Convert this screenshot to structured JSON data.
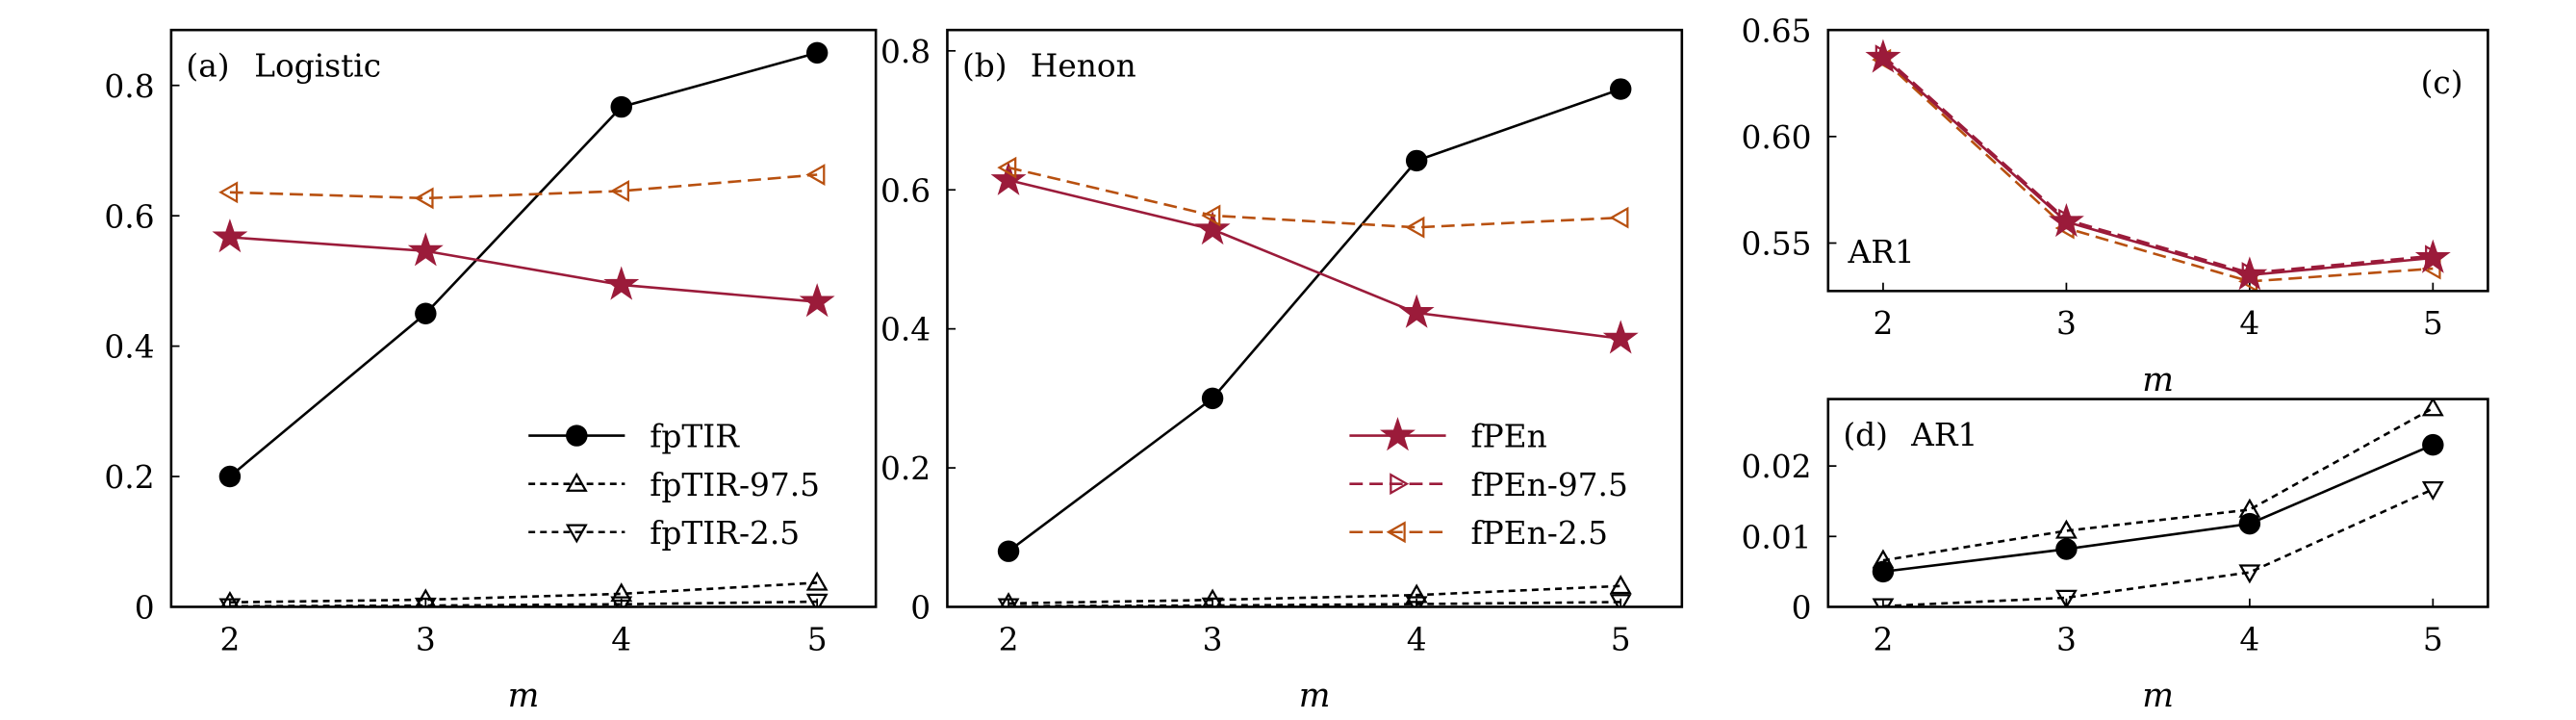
{
  "colors": {
    "fpTIR": "#000000",
    "fPEn": "#9b1b3a",
    "fPEn_band": "#b8500f"
  },
  "chart_data": [
    {
      "type": "line",
      "panel_label": "(a)",
      "title": "Logistic",
      "xlabel": "m",
      "ylabel": "",
      "x": [
        2,
        3,
        4,
        5
      ],
      "xticks": [
        "2",
        "3",
        "4",
        "5"
      ],
      "yticks": [
        "0",
        "0.2",
        "0.4",
        "0.6",
        "0.8"
      ],
      "yticks_values": [
        0,
        0.2,
        0.4,
        0.6,
        0.8
      ],
      "ylim": [
        0,
        0.885
      ],
      "xlim": [
        1.7,
        5.3
      ],
      "legend": "bottom-right",
      "legend_entries": [
        "fpTIR",
        "fpTIR-97.5",
        "fpTIR-2.5"
      ],
      "series": [
        {
          "name": "fpTIR",
          "values": [
            0.2,
            0.45,
            0.767,
            0.85
          ],
          "marker": "circle",
          "style": "solid",
          "color": "#000000"
        },
        {
          "name": "fpTIR-97.5",
          "values": [
            0.007,
            0.011,
            0.02,
            0.037
          ],
          "marker": "triangle-up",
          "style": "dotted",
          "color": "#000000"
        },
        {
          "name": "fpTIR-2.5",
          "values": [
            0.001,
            0.002,
            0.004,
            0.008
          ],
          "marker": "triangle-down",
          "style": "dotted",
          "color": "#000000"
        },
        {
          "name": "fPEn",
          "values": [
            0.567,
            0.546,
            0.494,
            0.468
          ],
          "marker": "star",
          "style": "solid",
          "color": "#9b1b3a"
        },
        {
          "name": "fPEn-2.5",
          "values": [
            0.636,
            0.627,
            0.638,
            0.663
          ],
          "marker": "triangle-left",
          "style": "dashed",
          "color": "#b8500f"
        }
      ]
    },
    {
      "type": "line",
      "panel_label": "(b)",
      "title": "Henon",
      "xlabel": "m",
      "ylabel": "",
      "x": [
        2,
        3,
        4,
        5
      ],
      "xticks": [
        "2",
        "3",
        "4",
        "5"
      ],
      "yticks": [
        "0",
        "0.2",
        "0.4",
        "0.6",
        "0.8"
      ],
      "yticks_values": [
        0,
        0.2,
        0.4,
        0.6,
        0.8
      ],
      "ylim": [
        0,
        0.83
      ],
      "xlim": [
        1.7,
        5.3
      ],
      "legend": "bottom-right",
      "legend_entries": [
        "fPEn",
        "fPEn-97.5",
        "fPEn-2.5"
      ],
      "series": [
        {
          "name": "fpTIR",
          "values": [
            0.08,
            0.3,
            0.642,
            0.745
          ],
          "marker": "circle",
          "style": "solid",
          "color": "#000000"
        },
        {
          "name": "fpTIR-97.5",
          "values": [
            0.005,
            0.01,
            0.017,
            0.03
          ],
          "marker": "triangle-up",
          "style": "dotted",
          "color": "#000000"
        },
        {
          "name": "fpTIR-2.5",
          "values": [
            0.001,
            0.002,
            0.004,
            0.007
          ],
          "marker": "triangle-down",
          "style": "dotted",
          "color": "#000000"
        },
        {
          "name": "fPEn",
          "values": [
            0.614,
            0.543,
            0.423,
            0.386
          ],
          "marker": "star",
          "style": "solid",
          "color": "#9b1b3a"
        },
        {
          "name": "fPEn-2.5",
          "values": [
            0.632,
            0.563,
            0.546,
            0.56
          ],
          "marker": "triangle-left",
          "style": "dashed",
          "color": "#b8500f"
        }
      ]
    },
    {
      "type": "line",
      "panel_label": "(c)",
      "title": "AR1",
      "xlabel": "m",
      "ylabel": "",
      "x": [
        2,
        3,
        4,
        5
      ],
      "xticks": [
        "2",
        "3",
        "4",
        "5"
      ],
      "yticks": [
        "0.55",
        "0.60",
        "0.65"
      ],
      "yticks_values": [
        0.55,
        0.6,
        0.65
      ],
      "ylim": [
        0.5275,
        0.65
      ],
      "xlim": [
        1.7,
        5.3
      ],
      "series": [
        {
          "name": "fPEn-97.5",
          "values": [
            0.638,
            0.561,
            0.536,
            0.544
          ],
          "marker": "triangle-right",
          "style": "dashed",
          "color": "#9b1b3a"
        },
        {
          "name": "fPEn-2.5",
          "values": [
            0.636,
            0.557,
            0.532,
            0.538
          ],
          "marker": "triangle-left",
          "style": "dashed",
          "color": "#b8500f"
        },
        {
          "name": "fPEn",
          "values": [
            0.637,
            0.56,
            0.535,
            0.543
          ],
          "marker": "star",
          "style": "solid",
          "color": "#9b1b3a"
        }
      ]
    },
    {
      "type": "line",
      "panel_label": "(d)",
      "title": "AR1",
      "xlabel": "m",
      "ylabel": "",
      "x": [
        2,
        3,
        4,
        5
      ],
      "xticks": [
        "2",
        "3",
        "4",
        "5"
      ],
      "yticks": [
        "0",
        "0.01",
        "0.02"
      ],
      "yticks_values": [
        0,
        0.01,
        0.02
      ],
      "ylim": [
        0,
        0.0295
      ],
      "xlim": [
        1.7,
        5.3
      ],
      "series": [
        {
          "name": "fpTIR",
          "values": [
            0.005,
            0.0082,
            0.0118,
            0.023
          ],
          "marker": "circle",
          "style": "solid",
          "color": "#000000"
        },
        {
          "name": "fpTIR-97.5",
          "values": [
            0.0066,
            0.0108,
            0.0138,
            0.0282
          ],
          "marker": "triangle-up",
          "style": "dotted",
          "color": "#000000"
        },
        {
          "name": "fpTIR-2.5",
          "values": [
            0.0001,
            0.0013,
            0.0049,
            0.0167
          ],
          "marker": "triangle-down",
          "style": "dotted",
          "color": "#000000"
        }
      ]
    }
  ]
}
